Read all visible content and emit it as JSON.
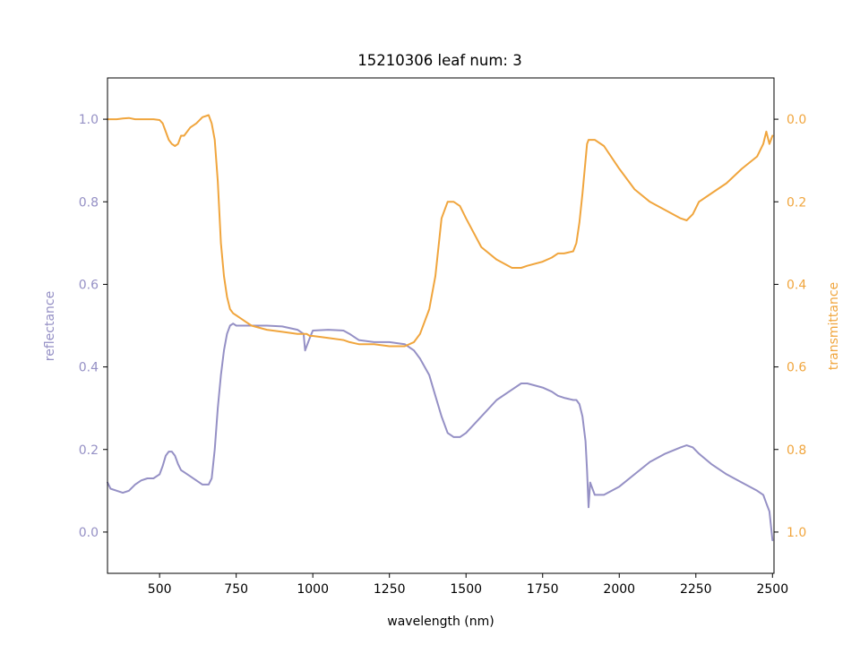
{
  "chart_data": {
    "type": "line",
    "title": "15210306 leaf num: 3",
    "xlabel": "wavelength (nm)",
    "ylabel_left": "reflectance",
    "ylabel_right": "transmittance",
    "xlim": [
      330,
      2505
    ],
    "ylim_left": [
      -0.1,
      1.1
    ],
    "ylim_right": [
      1.1,
      -0.1
    ],
    "right_axis_inverted": true,
    "grid": false,
    "legend": "none",
    "x_ticks": [
      500,
      750,
      1000,
      1250,
      1500,
      1750,
      2000,
      2250,
      2500
    ],
    "x_tick_labels": [
      "500",
      "750",
      "1000",
      "1250",
      "1500",
      "1750",
      "2000",
      "2250",
      "2500"
    ],
    "y_left_ticks": [
      0.0,
      0.2,
      0.4,
      0.6,
      0.8,
      1.0
    ],
    "y_left_tick_labels": [
      "0.0",
      "0.2",
      "0.4",
      "0.6",
      "0.8",
      "1.0"
    ],
    "y_right_ticks": [
      0.0,
      0.2,
      0.4,
      0.6,
      0.8,
      1.0
    ],
    "y_right_tick_labels": [
      "0.0",
      "0.2",
      "0.4",
      "0.6",
      "0.8",
      "1.0"
    ],
    "series": [
      {
        "axis": "left",
        "color": "#9590c5",
        "x": [
          330,
          340,
          360,
          380,
          400,
          420,
          440,
          460,
          480,
          500,
          510,
          520,
          530,
          540,
          550,
          560,
          570,
          580,
          600,
          620,
          640,
          660,
          670,
          680,
          690,
          700,
          710,
          720,
          730,
          740,
          750,
          760,
          780,
          800,
          850,
          900,
          950,
          970,
          975,
          980,
          990,
          1000,
          1050,
          1100,
          1120,
          1150,
          1200,
          1250,
          1300,
          1330,
          1350,
          1380,
          1400,
          1420,
          1440,
          1460,
          1480,
          1500,
          1550,
          1600,
          1650,
          1680,
          1700,
          1750,
          1780,
          1800,
          1820,
          1850,
          1860,
          1870,
          1880,
          1890,
          1895,
          1900,
          1905,
          1910,
          1920,
          1950,
          2000,
          2050,
          2100,
          2150,
          2200,
          2220,
          2240,
          2260,
          2300,
          2350,
          2400,
          2450,
          2470,
          2480,
          2490,
          2500
        ],
        "y": [
          0.12,
          0.105,
          0.1,
          0.095,
          0.1,
          0.115,
          0.125,
          0.13,
          0.13,
          0.14,
          0.16,
          0.185,
          0.195,
          0.195,
          0.185,
          0.165,
          0.15,
          0.145,
          0.135,
          0.125,
          0.115,
          0.115,
          0.13,
          0.2,
          0.3,
          0.38,
          0.44,
          0.48,
          0.5,
          0.505,
          0.5,
          0.5,
          0.5,
          0.5,
          0.5,
          0.498,
          0.49,
          0.48,
          0.44,
          0.45,
          0.47,
          0.488,
          0.49,
          0.488,
          0.48,
          0.465,
          0.46,
          0.46,
          0.455,
          0.44,
          0.42,
          0.38,
          0.33,
          0.28,
          0.24,
          0.23,
          0.23,
          0.24,
          0.28,
          0.32,
          0.345,
          0.36,
          0.36,
          0.35,
          0.34,
          0.33,
          0.325,
          0.32,
          0.32,
          0.31,
          0.28,
          0.22,
          0.15,
          0.06,
          0.12,
          0.11,
          0.09,
          0.09,
          0.11,
          0.14,
          0.17,
          0.19,
          0.205,
          0.21,
          0.205,
          0.19,
          0.165,
          0.14,
          0.12,
          0.1,
          0.09,
          0.07,
          0.05,
          -0.02
        ]
      },
      {
        "axis": "right",
        "color": "#f0a53d",
        "x": [
          330,
          340,
          360,
          380,
          400,
          420,
          440,
          460,
          480,
          500,
          510,
          520,
          530,
          540,
          550,
          560,
          570,
          580,
          600,
          620,
          640,
          660,
          670,
          680,
          690,
          700,
          710,
          720,
          730,
          740,
          750,
          760,
          780,
          800,
          850,
          900,
          950,
          970,
          975,
          980,
          990,
          1000,
          1050,
          1100,
          1120,
          1150,
          1200,
          1250,
          1300,
          1330,
          1350,
          1380,
          1400,
          1420,
          1440,
          1460,
          1480,
          1500,
          1550,
          1600,
          1650,
          1680,
          1700,
          1750,
          1780,
          1800,
          1820,
          1850,
          1860,
          1870,
          1880,
          1890,
          1895,
          1900,
          1905,
          1910,
          1920,
          1950,
          2000,
          2050,
          2100,
          2150,
          2200,
          2220,
          2240,
          2260,
          2300,
          2350,
          2400,
          2450,
          2470,
          2480,
          2490,
          2500
        ],
        "y": [
          0.0,
          0.0,
          0.0,
          -0.002,
          -0.003,
          0.0,
          0.0,
          0.0,
          0.0,
          0.002,
          0.01,
          0.03,
          0.05,
          0.06,
          0.065,
          0.06,
          0.04,
          0.04,
          0.02,
          0.01,
          -0.005,
          -0.01,
          0.01,
          0.05,
          0.15,
          0.3,
          0.38,
          0.43,
          0.46,
          0.47,
          0.475,
          0.48,
          0.49,
          0.5,
          0.51,
          0.515,
          0.52,
          0.52,
          0.52,
          0.52,
          0.525,
          0.525,
          0.53,
          0.535,
          0.54,
          0.545,
          0.545,
          0.55,
          0.55,
          0.54,
          0.52,
          0.46,
          0.38,
          0.24,
          0.2,
          0.2,
          0.21,
          0.24,
          0.31,
          0.34,
          0.36,
          0.36,
          0.355,
          0.345,
          0.335,
          0.325,
          0.325,
          0.32,
          0.3,
          0.25,
          0.18,
          0.1,
          0.06,
          0.05,
          0.05,
          0.05,
          0.05,
          0.065,
          0.12,
          0.17,
          0.2,
          0.22,
          0.24,
          0.245,
          0.23,
          0.2,
          0.18,
          0.155,
          0.12,
          0.09,
          0.06,
          0.03,
          0.06,
          0.04
        ]
      }
    ]
  }
}
